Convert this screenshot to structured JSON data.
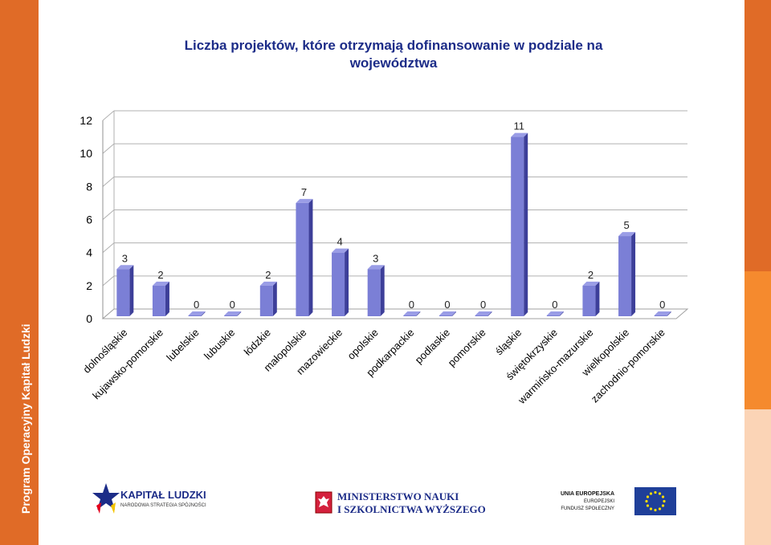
{
  "side_label": "Program Operacyjny Kapitał Ludzki",
  "chart_data": {
    "type": "bar",
    "title_line1": "Liczba projektów, które otrzymają dofinansowanie w podziale na",
    "title_line2": "województwa",
    "categories": [
      "dolnośląskie",
      "kujawsko-pomorskie",
      "lubelskie",
      "lubuskie",
      "łódzkie",
      "małopolskie",
      "mazowieckie",
      "opolskie",
      "podkarpackie",
      "podlaskie",
      "pomorskie",
      "śląskie",
      "świętokrzyskie",
      "warmińsko-mazurskie",
      "wielkopolskie",
      "zachodnio-pomorskie"
    ],
    "values": [
      3,
      2,
      0,
      0,
      2,
      7,
      4,
      3,
      0,
      0,
      0,
      11,
      0,
      2,
      5,
      0
    ],
    "ylim": [
      0,
      12
    ],
    "yticks": [
      0,
      2,
      4,
      6,
      8,
      10,
      12
    ],
    "grid": true,
    "bar_color": "#7b7fd6",
    "style": "3d"
  },
  "footer": {
    "kapital_title": "KAPITAŁ LUDZKI",
    "kapital_sub": "NARODOWA STRATEGIA SPÓJNOŚCI",
    "ministry_line1": "MINISTERSTWO NAUKI",
    "ministry_line2": "I SZKOLNICTWA WYŻSZEGO",
    "eu_line1": "UNIA EUROPEJSKA",
    "eu_line2": "EUROPEJSKI",
    "eu_line3": "FUNDUSZ SPOŁECZNY"
  }
}
